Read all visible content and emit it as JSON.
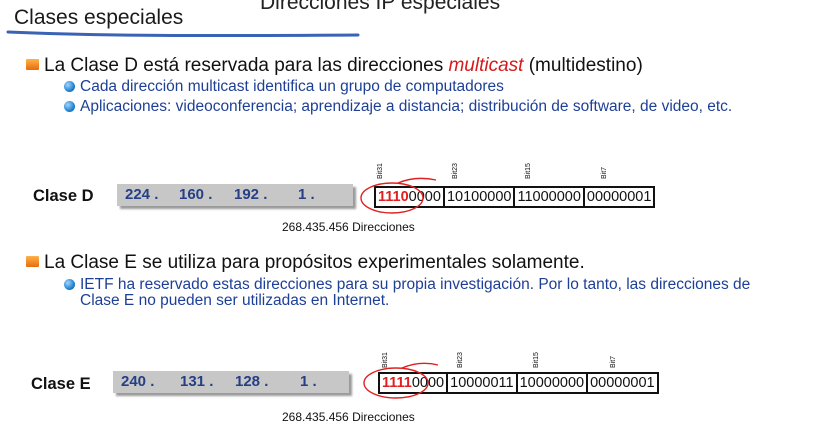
{
  "page": {
    "title": "Clases especiales",
    "top_partial": "Direcciones IP especiales"
  },
  "class_d": {
    "heading_pre": "La Clase D está reservada para las direcciones ",
    "heading_em": "multicast",
    "heading_post": " (multidestino)",
    "sub1": "Cada dirección multicast identifica un grupo de computadores",
    "sub2": "Aplicaciones: videoconferencia; aprendizaje a distancia; distribución de software, de video, etc.",
    "label": "Clase D",
    "octets": [
      "224 .",
      "160 .",
      "192 .",
      "1 ."
    ],
    "bit_labels": [
      "Bit31",
      "Bit23",
      "Bit15",
      "Bit7"
    ],
    "bits_hi": "1110",
    "bits_rest": "0000",
    "bits_2": "10100000",
    "bits_3": "11000000",
    "bits_4": "00000001",
    "count": "268.435.456 Direcciones"
  },
  "class_e": {
    "heading": "La Clase E se utiliza para propósitos experimentales solamente.",
    "sub1": "IETF ha reservado estas direcciones para su propia investigación. Por lo tanto, las direcciones de Clase E no pueden ser utilizadas en Internet.",
    "label": "Clase E",
    "octets": [
      "240 .",
      "131 .",
      "128 .",
      "1 ."
    ],
    "bit_labels": [
      "Bit31",
      "Bit23",
      "Bit15",
      "Bit7"
    ],
    "bits_hi": "1111",
    "bits_rest": "0000",
    "bits_2": "10000011",
    "bits_3": "10000000",
    "bits_4": "00000001",
    "count": "268.435.456 Direcciones"
  },
  "colors": {
    "bullet_main": "#e76c0c",
    "bullet_sub": "#1b7bc9",
    "sub_text": "#1d3f96",
    "highlight": "#e02020"
  }
}
